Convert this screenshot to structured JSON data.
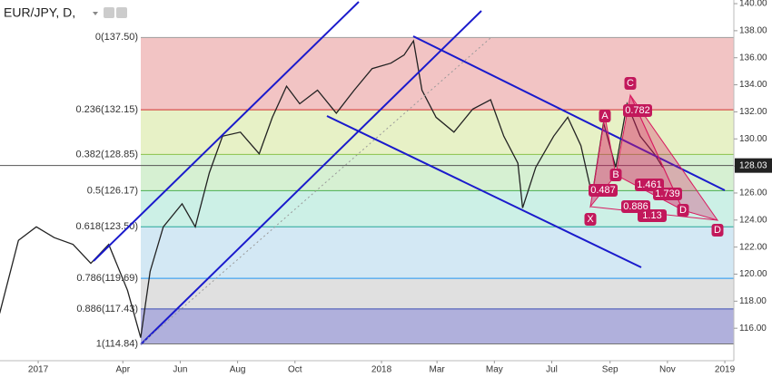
{
  "chart_data": {
    "type": "line",
    "title": "EUR/JPY, D,",
    "x": [
      -41,
      -21,
      -2,
      17,
      37,
      56,
      75,
      95,
      109,
      119,
      133,
      153,
      167,
      182,
      196,
      215,
      235,
      249,
      264,
      278,
      297,
      317,
      336,
      355,
      375,
      389,
      399,
      408,
      423,
      442,
      462,
      481,
      495,
      510,
      515,
      529,
      548,
      563,
      577,
      589,
      601,
      614,
      626,
      640,
      655,
      664
    ],
    "values": [
      117.1,
      122.5,
      123.5,
      122.7,
      122.2,
      120.8,
      122.2,
      118.8,
      115.3,
      120.2,
      123.5,
      125.2,
      123.5,
      127.5,
      130.2,
      130.5,
      128.9,
      131.6,
      133.9,
      132.6,
      133.6,
      131.9,
      133.6,
      135.2,
      135.6,
      136.2,
      137.25,
      133.6,
      131.6,
      130.5,
      132.2,
      132.9,
      130.2,
      128.2,
      124.9,
      127.9,
      130.2,
      131.6,
      129.5,
      125.8,
      131.2,
      127.9,
      132.6,
      130.2,
      128.9,
      127.9
    ],
    "color": "#222222",
    "xlim": [
      -40.6,
      739.6
    ],
    "xticks": [
      {
        "value": 0,
        "label": "2017"
      },
      {
        "value": 90,
        "label": "Apr"
      },
      {
        "value": 151,
        "label": "Jun"
      },
      {
        "value": 212,
        "label": "Aug"
      },
      {
        "value": 273,
        "label": "Oct"
      },
      {
        "value": 365,
        "label": "2018"
      },
      {
        "value": 424,
        "label": "Mar"
      },
      {
        "value": 485,
        "label": "May"
      },
      {
        "value": 546,
        "label": "Jul"
      },
      {
        "value": 608,
        "label": "Sep"
      },
      {
        "value": 669,
        "label": "Nov"
      },
      {
        "value": 730,
        "label": "2019"
      }
    ],
    "ylim": [
      113.6,
      140.27
    ],
    "yticks": [
      {
        "value": 116,
        "label": "116.00"
      },
      {
        "value": 118,
        "label": "118.00"
      },
      {
        "value": 120,
        "label": "120.00"
      },
      {
        "value": 122,
        "label": "122.00"
      },
      {
        "value": 124,
        "label": "124.00"
      },
      {
        "value": 126,
        "label": "126.00"
      },
      {
        "value": 128,
        "label": "128.00"
      },
      {
        "value": 130,
        "label": "130.00"
      },
      {
        "value": 132,
        "label": "132.00"
      },
      {
        "value": 134,
        "label": "134.00"
      },
      {
        "value": 136,
        "label": "136.00"
      },
      {
        "value": 138,
        "label": "138.00"
      },
      {
        "value": 140,
        "label": "140.00"
      }
    ],
    "last_price": 128.03,
    "fib_levels": [
      {
        "label": "0(137.50)",
        "value": 137.5,
        "color": "#9e9e9e",
        "band_color": "#f2c4c4"
      },
      {
        "label": "0.236(132.15)",
        "value": 132.15,
        "color": "#d32f2f",
        "band_color": "#e7f1c6"
      },
      {
        "label": "0.382(128.85)",
        "value": 128.85,
        "color": "#8bc34a",
        "band_color": "#d6f0d2"
      },
      {
        "label": "0.5(126.17)",
        "value": 126.17,
        "color": "#4caf50",
        "band_color": "#ccf0e6"
      },
      {
        "label": "0.618(123.50)",
        "value": 123.5,
        "color": "#26a69a",
        "band_color": "#d3e8f4"
      },
      {
        "label": "0.786(119.69)",
        "value": 119.69,
        "color": "#2196f3",
        "band_color": "#e0e0e0"
      },
      {
        "label": "0.886(117.43)",
        "value": 117.43,
        "color": "#3f51b5",
        "band_color": "#b0b0dc"
      },
      {
        "label": "1(114.84)",
        "value": 114.84,
        "color": "#757575",
        "band_color": null
      }
    ],
    "pattern_points": [
      "X",
      "A",
      "B",
      "C",
      "D",
      "D"
    ],
    "pattern_ratios": [
      "0.782",
      "0.487",
      "1.461",
      "1.739",
      "0.886",
      "1.13"
    ]
  }
}
